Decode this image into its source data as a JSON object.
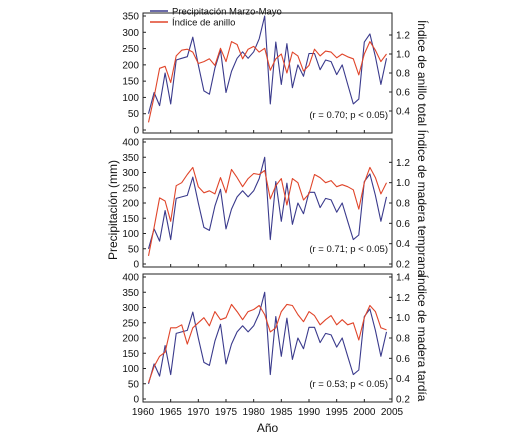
{
  "chart_data": {
    "type": "line",
    "x": [
      1961,
      1962,
      1963,
      1964,
      1965,
      1966,
      1967,
      1968,
      1969,
      1970,
      1971,
      1972,
      1973,
      1974,
      1975,
      1976,
      1977,
      1978,
      1979,
      1980,
      1981,
      1982,
      1983,
      1984,
      1985,
      1986,
      1987,
      1988,
      1989,
      1990,
      1991,
      1992,
      1993,
      1994,
      1995,
      1996,
      1997,
      1998,
      1999,
      2000,
      2001,
      2002,
      2003,
      2004
    ],
    "xlabel": "Año",
    "ylabel": "Precipitación (mm)",
    "xlim": [
      1960,
      2005
    ],
    "xticks": [
      "1960",
      "1965",
      "1970",
      "1975",
      "1980",
      "1985",
      "1990",
      "1995",
      "2000",
      "2005"
    ],
    "legend": {
      "position": "top-left",
      "entries": [
        "Precipitación Marzo-Mayo",
        "Índice de anillo"
      ]
    },
    "colors": {
      "precip": "#3a3a8c",
      "index": "#e0452a"
    },
    "precipitation": [
      50,
      115,
      75,
      175,
      80,
      215,
      220,
      225,
      285,
      200,
      120,
      110,
      190,
      245,
      115,
      180,
      220,
      240,
      220,
      240,
      280,
      350,
      80,
      270,
      140,
      265,
      130,
      200,
      165,
      235,
      235,
      185,
      215,
      210,
      170,
      200,
      140,
      80,
      95,
      270,
      295,
      225,
      140,
      220
    ],
    "panels": [
      {
        "right_label": "Índice de anillo total",
        "annotation": "(r = 0.70; p < 0.05)",
        "left_ylim": [
          0,
          350
        ],
        "left_yticks": [
          "0",
          "50",
          "100",
          "150",
          "200",
          "250",
          "300",
          "350"
        ],
        "right_ylim": [
          0.2,
          1.4
        ],
        "right_yticks": [
          "0.4",
          "0.6",
          "0.8",
          "1.0",
          "1.2"
        ],
        "ring_index": [
          0.28,
          0.55,
          0.85,
          0.87,
          0.7,
          0.98,
          1.04,
          1.05,
          1.02,
          0.9,
          0.92,
          0.95,
          0.88,
          1.06,
          0.92,
          1.13,
          1.1,
          0.95,
          1.05,
          1.08,
          1.02,
          1.06,
          0.83,
          0.95,
          1.0,
          0.8,
          1.02,
          0.98,
          0.82,
          0.88,
          1.05,
          0.98,
          1.03,
          1.02,
          0.96,
          1.0,
          0.97,
          0.95,
          0.78,
          1.0,
          1.13,
          1.04,
          0.92,
          1.0
        ]
      },
      {
        "right_label": "Índice de madera temprana",
        "annotation": "(r = 0.71; p < 0.05)",
        "left_ylim": [
          0,
          400
        ],
        "left_yticks": [
          "0",
          "50",
          "100",
          "150",
          "200",
          "250",
          "300",
          "350",
          "400"
        ],
        "right_ylim": [
          0.2,
          1.4
        ],
        "right_yticks": [
          "0.2",
          "0.4",
          "0.6",
          "0.8",
          "1.0",
          "1.2"
        ],
        "ring_index": [
          0.28,
          0.56,
          0.85,
          0.82,
          0.62,
          0.97,
          1.0,
          1.08,
          1.15,
          0.96,
          0.9,
          0.92,
          0.89,
          1.05,
          0.9,
          1.13,
          1.05,
          0.96,
          1.04,
          1.09,
          1.08,
          1.12,
          0.84,
          0.97,
          1.04,
          0.78,
          1.04,
          1.0,
          0.83,
          0.89,
          1.08,
          1.05,
          1.0,
          1.02,
          0.96,
          0.98,
          0.96,
          0.93,
          0.74,
          1.0,
          1.15,
          1.05,
          0.89,
          1.0
        ]
      },
      {
        "right_label": "Índice de madera tardía",
        "annotation": "(r = 0.53; p < 0.05)",
        "left_ylim": [
          0,
          400
        ],
        "left_yticks": [
          "0",
          "50",
          "100",
          "150",
          "200",
          "250",
          "300",
          "350",
          "400"
        ],
        "right_ylim": [
          0.2,
          1.4
        ],
        "right_yticks": [
          "0.2",
          "0.4",
          "0.6",
          "0.8",
          "1.0",
          "1.2",
          "1.4"
        ],
        "ring_index": [
          0.36,
          0.52,
          0.62,
          0.66,
          0.9,
          0.9,
          0.93,
          0.74,
          0.9,
          0.95,
          1.0,
          0.92,
          1.06,
          0.98,
          1.0,
          1.13,
          1.06,
          0.98,
          1.06,
          1.08,
          1.12,
          1.03,
          0.86,
          0.9,
          1.06,
          1.13,
          1.12,
          1.03,
          0.96,
          1.06,
          1.02,
          0.93,
          0.98,
          1.02,
          0.93,
          0.98,
          0.93,
          0.95,
          0.78,
          1.0,
          1.12,
          1.06,
          0.9,
          0.88
        ]
      }
    ]
  }
}
